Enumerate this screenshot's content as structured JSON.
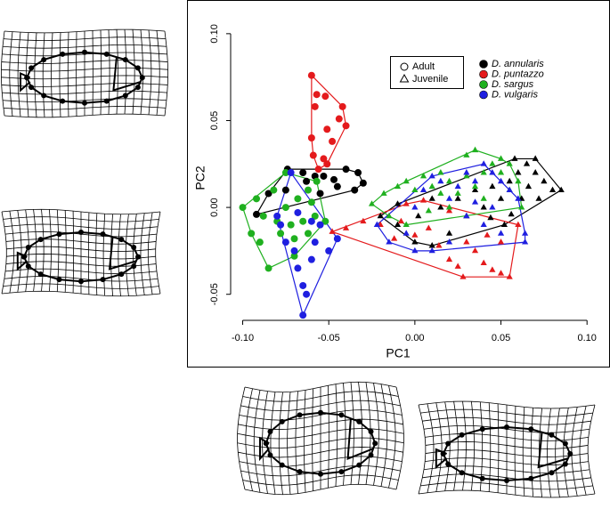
{
  "chart_data": {
    "type": "scatter",
    "xlabel": "PC1",
    "ylabel": "PC2",
    "xlim": [
      -0.107,
      0.103
    ],
    "ylim": [
      -0.065,
      0.103
    ],
    "xticks": [
      {
        "value": -0.1,
        "label": "-0.10"
      },
      {
        "value": -0.05,
        "label": "-0.05"
      },
      {
        "value": 0,
        "label": "0.00"
      },
      {
        "value": 0.05,
        "label": "0.05"
      },
      {
        "value": 0.1,
        "label": "0.10"
      }
    ],
    "yticks": [
      {
        "value": -0.05,
        "label": "-0.05"
      },
      {
        "value": 0,
        "label": "0.00"
      },
      {
        "value": 0.05,
        "label": "0.05"
      },
      {
        "value": 0.1,
        "label": "0.10"
      }
    ],
    "stages": [
      "Adult",
      "Juvenile"
    ],
    "series": [
      {
        "name": "D. annularis",
        "color": "#000000",
        "adult": {
          "x": [
            -0.085,
            -0.092,
            -0.074,
            -0.065,
            -0.063,
            -0.058,
            -0.053,
            -0.047,
            -0.045,
            -0.04,
            -0.033,
            -0.035,
            -0.055,
            -0.03,
            -0.075
          ],
          "y": [
            0.008,
            -0.004,
            0.022,
            0.02,
            0.015,
            0.018,
            0.018,
            0.016,
            0.012,
            0.022,
            0.02,
            0.01,
            0.008,
            0.014,
            0.01
          ]
        },
        "juvenile": {
          "x": [
            -0.02,
            -0.01,
            0.0,
            0.01,
            0.02,
            0.03,
            0.04,
            0.05,
            0.055,
            0.06,
            0.065,
            0.07,
            0.075,
            0.08,
            0.085,
            0.07,
            0.058,
            0.045,
            0.035,
            0.025,
            0.015,
            0.062,
            0.072,
            0.052,
            0.044,
            0.01,
            0.002,
            -0.01,
            0.066,
            0.056
          ],
          "y": [
            -0.005,
            -0.01,
            -0.02,
            -0.022,
            -0.015,
            -0.005,
            0.0,
            0.005,
            0.015,
            0.02,
            0.025,
            0.02,
            0.015,
            0.01,
            0.01,
            0.028,
            0.028,
            0.012,
            0.01,
            0.005,
            0.0,
            0.005,
            0.005,
            -0.01,
            -0.006,
            0.005,
            -0.005,
            0.002,
            0.012,
            -0.004
          ]
        }
      },
      {
        "name": "D. puntazzo",
        "color": "#e41a1c",
        "adult": {
          "x": [
            -0.06,
            -0.052,
            -0.057,
            -0.058,
            -0.06,
            -0.051,
            -0.044,
            -0.059,
            -0.048,
            -0.053,
            -0.056,
            -0.051,
            -0.04,
            -0.042
          ],
          "y": [
            0.076,
            0.064,
            0.065,
            0.058,
            0.04,
            0.045,
            0.051,
            0.03,
            0.038,
            0.028,
            0.022,
            0.025,
            0.047,
            0.058
          ]
        },
        "juvenile": {
          "x": [
            -0.048,
            -0.04,
            -0.03,
            -0.02,
            -0.012,
            -0.008,
            0.0,
            0.008,
            0.014,
            0.02,
            0.025,
            0.03,
            0.035,
            0.04,
            0.045,
            0.05,
            0.055,
            0.05,
            0.042,
            0.02,
            0.005,
            -0.005,
            0.06,
            0.028
          ],
          "y": [
            -0.014,
            -0.012,
            -0.008,
            -0.01,
            -0.018,
            -0.008,
            -0.016,
            -0.012,
            -0.022,
            -0.03,
            -0.034,
            -0.02,
            -0.025,
            -0.032,
            -0.036,
            -0.038,
            -0.04,
            -0.02,
            -0.016,
            -0.002,
            0.004,
            0.002,
            -0.01,
            -0.04
          ]
        }
      },
      {
        "name": "D. sargus",
        "color": "#1fb01f",
        "adult": {
          "x": [
            -0.1,
            -0.095,
            -0.09,
            -0.085,
            -0.088,
            -0.08,
            -0.078,
            -0.075,
            -0.072,
            -0.07,
            -0.068,
            -0.065,
            -0.062,
            -0.06,
            -0.058,
            -0.057,
            -0.062,
            -0.082,
            -0.092,
            -0.075,
            -0.052,
            -0.07
          ],
          "y": [
            0.0,
            -0.015,
            -0.02,
            -0.035,
            -0.005,
            -0.008,
            -0.015,
            0.0,
            -0.01,
            -0.018,
            0.005,
            -0.008,
            -0.015,
            0.003,
            -0.005,
            0.015,
            0.01,
            0.01,
            0.005,
            0.02,
            -0.008,
            -0.028
          ]
        },
        "juvenile": {
          "x": [
            -0.025,
            -0.018,
            -0.01,
            -0.005,
            0.0,
            0.005,
            0.01,
            0.015,
            0.02,
            0.025,
            0.03,
            0.035,
            0.04,
            0.045,
            0.05,
            0.055,
            0.06,
            0.055,
            0.03,
            0.035,
            -0.015,
            0.008,
            0.02,
            0.04,
            0.062,
            -0.005,
            0.05,
            0.015
          ],
          "y": [
            0.002,
            0.008,
            0.012,
            0.015,
            0.01,
            0.018,
            0.012,
            0.02,
            0.015,
            0.008,
            0.018,
            0.012,
            0.02,
            0.025,
            0.02,
            0.01,
            0.015,
            0.025,
            0.03,
            0.033,
            -0.005,
            -0.002,
            0.0,
            0.005,
            0.0,
            -0.01,
            0.028,
            0.008
          ]
        }
      },
      {
        "name": "D. vulgaris",
        "color": "#1f1fe0",
        "adult": {
          "x": [
            -0.08,
            -0.078,
            -0.075,
            -0.07,
            -0.068,
            -0.065,
            -0.063,
            -0.065,
            -0.06,
            -0.058,
            -0.055,
            -0.068,
            -0.072,
            -0.05,
            -0.045,
            -0.06
          ],
          "y": [
            -0.005,
            -0.01,
            -0.02,
            -0.025,
            -0.035,
            -0.045,
            -0.05,
            -0.062,
            -0.03,
            -0.02,
            -0.01,
            -0.003,
            0.02,
            -0.025,
            -0.018,
            -0.008
          ]
        },
        "juvenile": {
          "x": [
            -0.022,
            -0.015,
            -0.005,
            0.0,
            0.005,
            0.01,
            0.015,
            0.02,
            0.025,
            0.03,
            0.035,
            0.04,
            0.045,
            0.05,
            0.055,
            0.06,
            0.064,
            0.064,
            0.05,
            0.04,
            0.03,
            0.02,
            0.01,
            0.0,
            0.045,
            0.035
          ],
          "y": [
            -0.01,
            -0.02,
            -0.015,
            0.0,
            0.01,
            0.018,
            0.015,
            0.005,
            0.012,
            0.02,
            0.015,
            0.025,
            0.02,
            0.015,
            0.01,
            0.005,
            -0.015,
            -0.02,
            -0.015,
            -0.01,
            -0.005,
            -0.02,
            -0.025,
            -0.025,
            0.0,
            0.003
          ]
        }
      }
    ]
  }
}
